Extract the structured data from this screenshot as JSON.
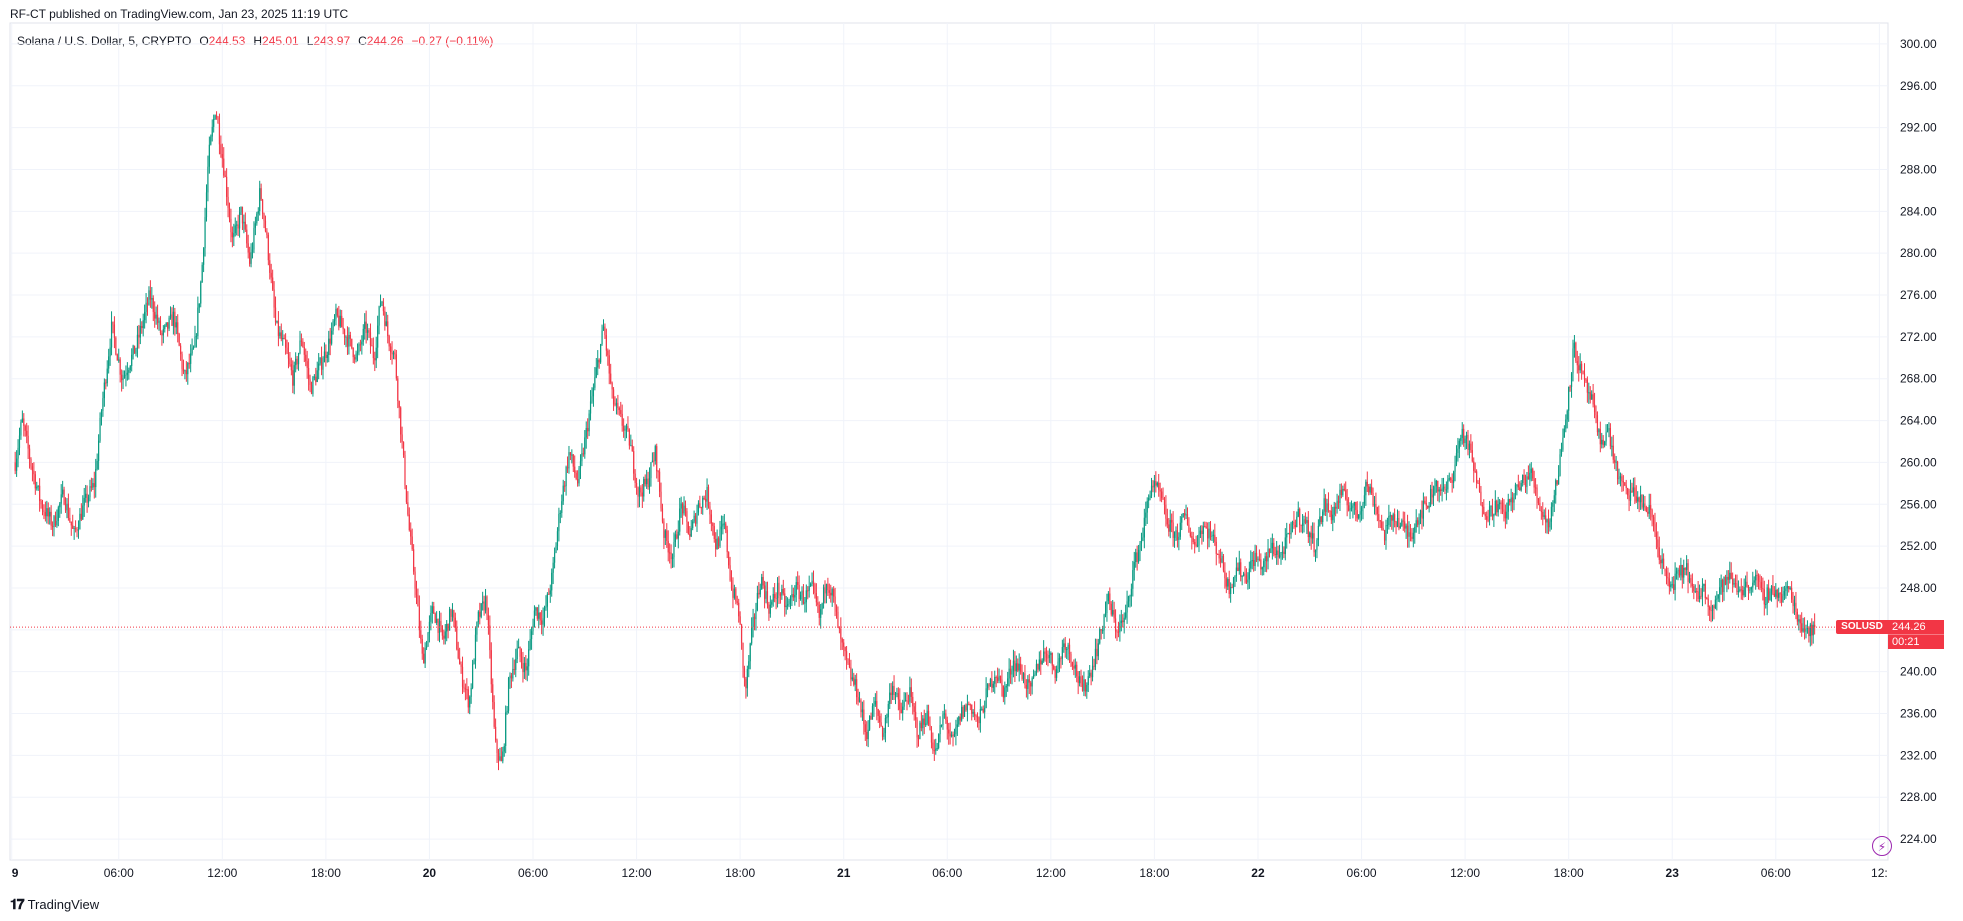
{
  "header": {
    "publisher_text": "RF-CT published on TradingView.com, Jan 23, 2025 11:19 UTC"
  },
  "legend": {
    "symbol_desc": "Solana / U.S. Dollar, 5, CRYPTO",
    "o_label": "O",
    "o_value": "244.53",
    "h_label": "H",
    "h_value": "245.01",
    "l_label": "L",
    "l_value": "243.97",
    "c_label": "C",
    "c_value": "244.26",
    "change": "−0.27 (−0.11%)"
  },
  "price_tag": {
    "symbol": "SOLUSD",
    "price": "244.26",
    "countdown": "00:21"
  },
  "footer": {
    "brand": "TradingView"
  },
  "colors": {
    "up": "#089981",
    "down": "#f23645",
    "grid": "#f0f3fa",
    "axis_text": "#131722",
    "last_price_line": "#f23645"
  },
  "chart_data": {
    "type": "candlestick",
    "symbol": "SOLUSD",
    "interval_minutes": 5,
    "ylim": [
      222,
      302
    ],
    "y_ticks": [
      "224.00",
      "228.00",
      "232.00",
      "236.00",
      "240.00",
      "244.00",
      "248.00",
      "252.00",
      "256.00",
      "260.00",
      "264.00",
      "268.00",
      "272.00",
      "276.00",
      "280.00",
      "284.00",
      "288.00",
      "292.00",
      "296.00",
      "300.00"
    ],
    "x_ticks": [
      {
        "label": "9",
        "hour": -0.2
      },
      {
        "label": "06:00",
        "hour": 6
      },
      {
        "label": "12:00",
        "hour": 12
      },
      {
        "label": "18:00",
        "hour": 18
      },
      {
        "label": "20",
        "hour": 24
      },
      {
        "label": "06:00",
        "hour": 30
      },
      {
        "label": "12:00",
        "hour": 36
      },
      {
        "label": "18:00",
        "hour": 42
      },
      {
        "label": "21",
        "hour": 48
      },
      {
        "label": "06:00",
        "hour": 54
      },
      {
        "label": "12:00",
        "hour": 60
      },
      {
        "label": "18:00",
        "hour": 66
      },
      {
        "label": "22",
        "hour": 72
      },
      {
        "label": "06:00",
        "hour": 78
      },
      {
        "label": "12:00",
        "hour": 84
      },
      {
        "label": "18:00",
        "hour": 90
      },
      {
        "label": "23",
        "hour": 96
      },
      {
        "label": "06:00",
        "hour": 102
      },
      {
        "label": "12:",
        "hour": 108
      }
    ],
    "x_range_hours": [
      -0.3,
      108.5
    ],
    "last_price": 244.26,
    "path_keypoints_hour_price": [
      [
        0,
        260
      ],
      [
        0.4,
        264
      ],
      [
        0.9,
        260
      ],
      [
        1.5,
        256
      ],
      [
        2.2,
        254
      ],
      [
        2.8,
        257
      ],
      [
        3.4,
        253
      ],
      [
        4,
        256
      ],
      [
        4.6,
        258
      ],
      [
        5,
        265
      ],
      [
        5.6,
        273
      ],
      [
        6.2,
        268
      ],
      [
        7,
        271
      ],
      [
        7.8,
        276
      ],
      [
        8.5,
        272
      ],
      [
        9.2,
        274
      ],
      [
        9.8,
        268
      ],
      [
        10.4,
        271
      ],
      [
        10.8,
        278
      ],
      [
        11.2,
        289
      ],
      [
        11.6,
        294
      ],
      [
        12.1,
        288
      ],
      [
        12.6,
        281
      ],
      [
        13.1,
        284
      ],
      [
        13.6,
        279
      ],
      [
        14.2,
        286
      ],
      [
        14.6,
        281
      ],
      [
        15.1,
        273
      ],
      [
        15.6,
        271
      ],
      [
        16.1,
        268
      ],
      [
        16.6,
        272
      ],
      [
        17.1,
        267
      ],
      [
        17.6,
        269
      ],
      [
        18.1,
        271
      ],
      [
        18.6,
        274
      ],
      [
        19.2,
        272
      ],
      [
        19.8,
        270
      ],
      [
        20.3,
        273
      ],
      [
        20.8,
        270
      ],
      [
        21.2,
        276
      ],
      [
        21.6,
        272
      ],
      [
        22,
        270
      ],
      [
        22.4,
        262
      ],
      [
        22.8,
        254
      ],
      [
        23.2,
        248
      ],
      [
        23.6,
        241
      ],
      [
        24.2,
        246
      ],
      [
        24.8,
        243
      ],
      [
        25.3,
        246
      ],
      [
        25.8,
        240
      ],
      [
        26.3,
        237
      ],
      [
        26.8,
        245
      ],
      [
        27.3,
        247
      ],
      [
        27.8,
        233
      ],
      [
        28.2,
        231
      ],
      [
        28.6,
        239
      ],
      [
        29.1,
        242
      ],
      [
        29.6,
        240
      ],
      [
        30.1,
        246
      ],
      [
        30.6,
        245
      ],
      [
        31.1,
        249
      ],
      [
        31.6,
        256
      ],
      [
        32.1,
        261
      ],
      [
        32.6,
        258
      ],
      [
        33.1,
        263
      ],
      [
        33.6,
        268
      ],
      [
        34.1,
        273
      ],
      [
        34.6,
        266
      ],
      [
        35.1,
        264
      ],
      [
        35.6,
        262
      ],
      [
        36.1,
        257
      ],
      [
        36.6,
        258
      ],
      [
        37.1,
        261
      ],
      [
        37.6,
        253
      ],
      [
        38.1,
        251
      ],
      [
        38.6,
        256
      ],
      [
        39.1,
        253
      ],
      [
        39.6,
        256
      ],
      [
        40.1,
        257
      ],
      [
        40.6,
        252
      ],
      [
        41.1,
        254
      ],
      [
        41.5,
        248
      ],
      [
        41.9,
        246
      ],
      [
        42.3,
        238
      ],
      [
        42.7,
        244
      ],
      [
        43.2,
        249
      ],
      [
        43.7,
        246
      ],
      [
        44.2,
        248
      ],
      [
        44.7,
        246
      ],
      [
        45.2,
        248
      ],
      [
        45.7,
        247
      ],
      [
        46.2,
        248
      ],
      [
        46.6,
        245
      ],
      [
        47,
        249
      ],
      [
        47.4,
        247
      ],
      [
        47.8,
        243
      ],
      [
        48.3,
        240
      ],
      [
        48.8,
        238
      ],
      [
        49.3,
        234
      ],
      [
        49.8,
        237
      ],
      [
        50.3,
        234
      ],
      [
        50.8,
        239
      ],
      [
        51.3,
        236
      ],
      [
        51.8,
        238
      ],
      [
        52.3,
        234
      ],
      [
        52.8,
        236
      ],
      [
        53.3,
        232
      ],
      [
        53.8,
        236
      ],
      [
        54.3,
        233
      ],
      [
        54.8,
        236
      ],
      [
        55.3,
        237
      ],
      [
        55.8,
        235
      ],
      [
        56.3,
        238
      ],
      [
        56.8,
        240
      ],
      [
        57.3,
        238
      ],
      [
        57.8,
        241
      ],
      [
        58.3,
        240
      ],
      [
        58.8,
        238
      ],
      [
        59.3,
        241
      ],
      [
        59.8,
        242
      ],
      [
        60.3,
        240
      ],
      [
        60.8,
        243
      ],
      [
        61.3,
        241
      ],
      [
        61.8,
        238
      ],
      [
        62.3,
        240
      ],
      [
        62.8,
        243
      ],
      [
        63.3,
        247
      ],
      [
        63.8,
        244
      ],
      [
        64.3,
        245
      ],
      [
        64.8,
        250
      ],
      [
        65.3,
        253
      ],
      [
        65.8,
        258
      ],
      [
        66.3,
        257
      ],
      [
        66.8,
        254
      ],
      [
        67.3,
        253
      ],
      [
        67.8,
        255
      ],
      [
        68.3,
        252
      ],
      [
        68.8,
        254
      ],
      [
        69.3,
        253
      ],
      [
        69.8,
        251
      ],
      [
        70.3,
        248
      ],
      [
        70.8,
        250
      ],
      [
        71.3,
        249
      ],
      [
        71.8,
        251
      ],
      [
        72.3,
        250
      ],
      [
        72.8,
        252
      ],
      [
        73.3,
        251
      ],
      [
        73.8,
        253
      ],
      [
        74.3,
        255
      ],
      [
        74.8,
        254
      ],
      [
        75.3,
        252
      ],
      [
        75.8,
        256
      ],
      [
        76.3,
        255
      ],
      [
        76.8,
        257
      ],
      [
        77.3,
        256
      ],
      [
        77.8,
        255
      ],
      [
        78.3,
        258
      ],
      [
        78.8,
        256
      ],
      [
        79.3,
        253
      ],
      [
        79.8,
        255
      ],
      [
        80.3,
        254
      ],
      [
        80.8,
        253
      ],
      [
        81.3,
        255
      ],
      [
        81.8,
        256
      ],
      [
        82.3,
        258
      ],
      [
        82.8,
        257
      ],
      [
        83.3,
        259
      ],
      [
        83.8,
        263
      ],
      [
        84.3,
        261
      ],
      [
        84.8,
        257
      ],
      [
        85.3,
        255
      ],
      [
        85.8,
        256
      ],
      [
        86.3,
        255
      ],
      [
        86.8,
        257
      ],
      [
        87.3,
        258
      ],
      [
        87.8,
        259
      ],
      [
        88.3,
        256
      ],
      [
        88.8,
        254
      ],
      [
        89.3,
        258
      ],
      [
        89.8,
        264
      ],
      [
        90.3,
        271
      ],
      [
        90.8,
        268
      ],
      [
        91.3,
        266
      ],
      [
        91.8,
        262
      ],
      [
        92.3,
        263
      ],
      [
        92.8,
        259
      ],
      [
        93.3,
        257
      ],
      [
        93.8,
        257
      ],
      [
        94.3,
        256
      ],
      [
        94.8,
        255
      ],
      [
        95.3,
        251
      ],
      [
        95.8,
        248
      ],
      [
        96.3,
        249
      ],
      [
        96.8,
        250
      ],
      [
        97.3,
        247
      ],
      [
        97.8,
        248
      ],
      [
        98.3,
        246
      ],
      [
        98.8,
        248
      ],
      [
        99.3,
        249
      ],
      [
        99.8,
        248
      ],
      [
        100.3,
        248
      ],
      [
        100.8,
        249
      ],
      [
        101.3,
        247
      ],
      [
        101.8,
        248
      ],
      [
        102.3,
        247
      ],
      [
        102.8,
        248
      ],
      [
        103.3,
        245
      ],
      [
        103.8,
        244
      ],
      [
        104.3,
        244.26
      ]
    ]
  }
}
